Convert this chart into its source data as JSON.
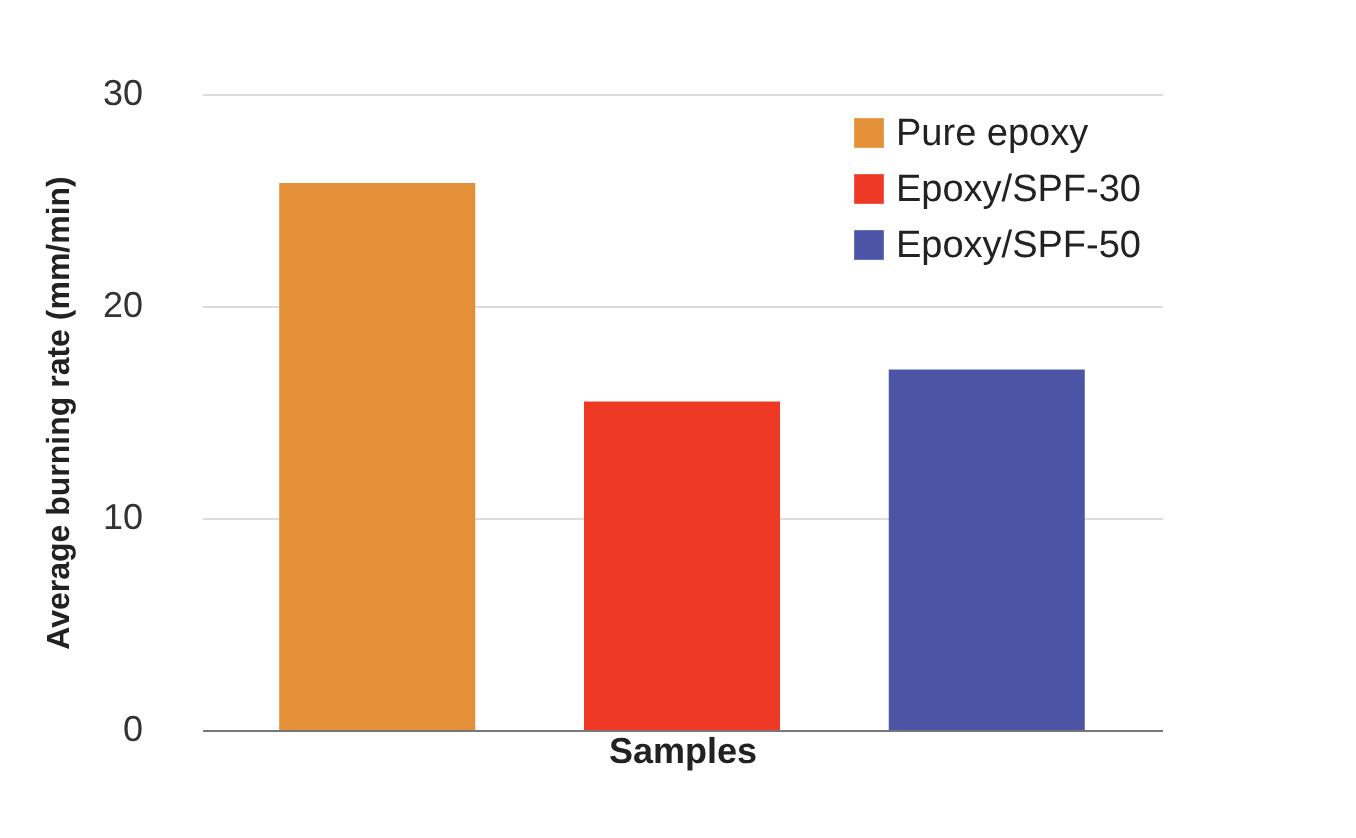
{
  "chart_data": {
    "type": "bar",
    "xlabel": "Samples",
    "ylabel": "Average burning rate (mm/min)",
    "categories": [
      null,
      null,
      null
    ],
    "series": [
      {
        "name": "Pure epoxy",
        "color": "#e39038",
        "values": [
          25.8,
          null,
          null
        ]
      },
      {
        "name": "Epoxy/SPF-30",
        "color": "#ee3a24",
        "values": [
          null,
          15.5,
          null
        ]
      },
      {
        "name": "Epoxy/SPF-50",
        "color": "#4c55a5",
        "values": [
          null,
          null,
          17.0
        ]
      }
    ],
    "ylim": [
      0,
      30
    ],
    "yticks": [
      0,
      10,
      20,
      30
    ],
    "grid": "y",
    "legend": "top right"
  }
}
